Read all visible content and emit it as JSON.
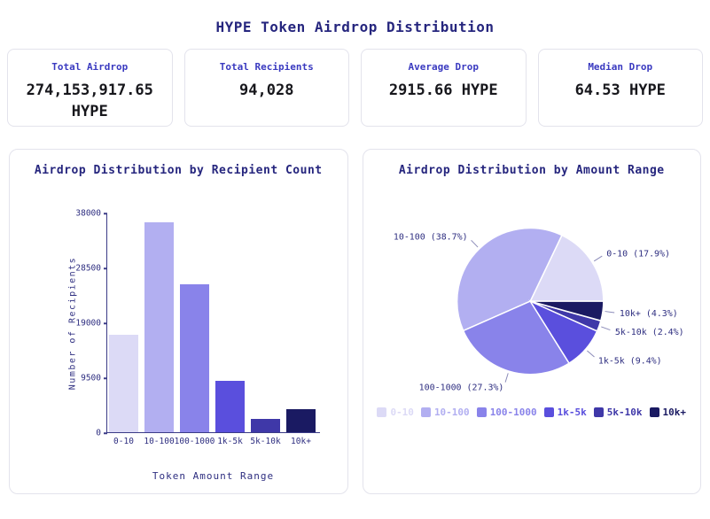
{
  "page": {
    "title": "HYPE Token Airdrop Distribution"
  },
  "stats": [
    {
      "label": "Total Airdrop",
      "value": "274,153,917.65 HYPE"
    },
    {
      "label": "Total Recipients",
      "value": "94,028"
    },
    {
      "label": "Average Drop",
      "value": "2915.66 HYPE"
    },
    {
      "label": "Median Drop",
      "value": "64.53 HYPE"
    }
  ],
  "colors": {
    "title_navy": "#26267e",
    "stat_label_indigo": "#3a3ac0",
    "axis_navy": "#3b3b87",
    "tick_text_navy": "#2e2e80",
    "card_border": "#e3e3ec",
    "palette": [
      "#dcdaf6",
      "#b2aff1",
      "#8983ea",
      "#5a4fdd",
      "#3f38a8",
      "#1a1a62"
    ]
  },
  "chart_data": [
    {
      "type": "bar",
      "title": "Airdrop Distribution by Recipient Count",
      "categories": [
        "0-10",
        "10-100",
        "100-1000",
        "1k-5k",
        "5k-10k",
        "10k+"
      ],
      "values": [
        16831,
        36389,
        25670,
        8839,
        2257,
        4043
      ],
      "xlabel": "Token Amount Range",
      "ylabel": "Number of Recipients",
      "yticks": [
        0,
        9500,
        19000,
        28500,
        38000
      ],
      "ylim": [
        0,
        38000
      ],
      "grid": false,
      "colors": [
        "#dcdaf6",
        "#b2aff1",
        "#8983ea",
        "#5a4fdd",
        "#3f38a8",
        "#1a1a62"
      ]
    },
    {
      "type": "pie",
      "title": "Airdrop Distribution by Amount Range",
      "slices": [
        {
          "label": "0-10",
          "pct": 17.9
        },
        {
          "label": "10-100",
          "pct": 38.7
        },
        {
          "label": "100-1000",
          "pct": 27.3
        },
        {
          "label": "1k-5k",
          "pct": 9.4
        },
        {
          "label": "5k-10k",
          "pct": 2.4
        },
        {
          "label": "10k+",
          "pct": 4.3
        }
      ],
      "start_angle_deg": 0,
      "direction": "counterclockwise",
      "legend_position": "bottom",
      "colors": [
        "#dcdaf6",
        "#b2aff1",
        "#8983ea",
        "#5a4fdd",
        "#3f38a8",
        "#1a1a62"
      ]
    }
  ]
}
